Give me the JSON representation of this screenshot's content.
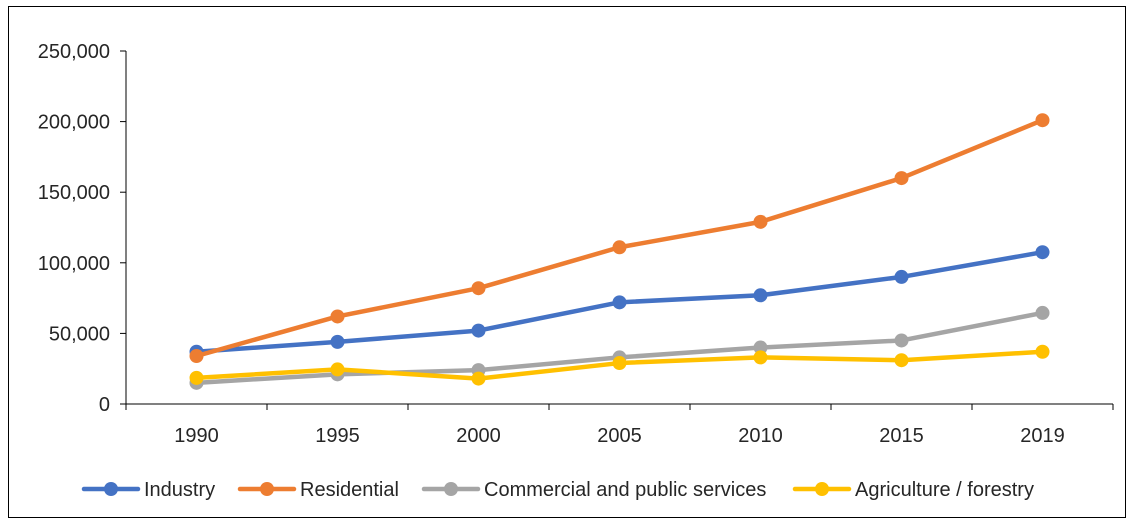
{
  "chart_data": {
    "type": "line",
    "title": "",
    "xlabel": "",
    "ylabel": "",
    "categories": [
      "1990",
      "1995",
      "2000",
      "2005",
      "2010",
      "2015",
      "2019"
    ],
    "ylim": [
      0,
      250000
    ],
    "yticks": [
      0,
      50000,
      100000,
      150000,
      200000,
      250000
    ],
    "ytick_labels": [
      "0",
      "50,000",
      "100,000",
      "150,000",
      "200,000",
      "250,000"
    ],
    "grid": false,
    "legend_position": "bottom",
    "series": [
      {
        "name": "Industry",
        "color": "#4472C4",
        "values": [
          37000,
          44000,
          52000,
          72000,
          77000,
          90000,
          107500
        ]
      },
      {
        "name": "Residential",
        "color": "#ED7D31",
        "values": [
          34000,
          62000,
          82000,
          111000,
          129000,
          160000,
          201000
        ]
      },
      {
        "name": "Commercial and public services",
        "color": "#A5A5A5",
        "values": [
          15000,
          21000,
          24000,
          33000,
          40000,
          45000,
          64500
        ]
      },
      {
        "name": "Agriculture / forestry",
        "color": "#FFC000",
        "values": [
          18500,
          24500,
          18000,
          29000,
          33000,
          31000,
          37000
        ]
      }
    ]
  }
}
